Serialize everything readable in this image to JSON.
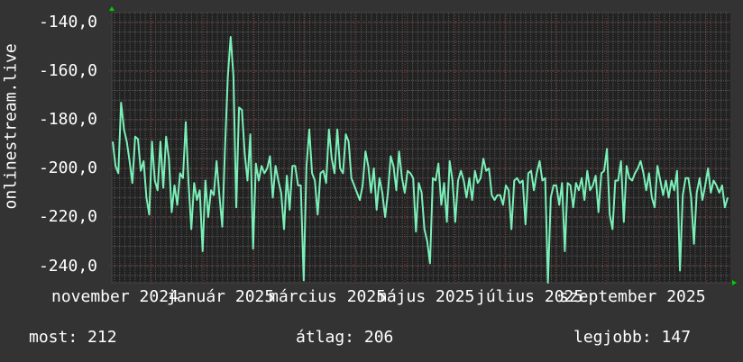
{
  "chart_data": {
    "type": "line",
    "title": "",
    "ylabel": "onlinestream.live",
    "xlabel": "",
    "ylim": [
      -247,
      -136
    ],
    "yticks": [
      -140,
      -160,
      -180,
      -200,
      -220,
      -240
    ],
    "ytick_labels": [
      "-140,0",
      "-160,0",
      "-180,0",
      "-200,0",
      "-220,0",
      "-240,0"
    ],
    "x_range": [
      "2024-11-01",
      "2025-10-15"
    ],
    "xtick_labels": [
      "november 2024",
      "január 2025",
      "március 2025",
      "május 2025",
      "július 2025",
      "szeptember 2025"
    ],
    "grid": true,
    "colors": {
      "background": "#333333",
      "plot_background": "#222222",
      "line": "#7af0b8",
      "major_grid": "#8a3a3a",
      "minor_grid": "#555555",
      "arrow": "#00cc00"
    },
    "values": [
      -189,
      -199,
      -202,
      -173,
      -184,
      -189,
      -197,
      -206,
      -187,
      -188,
      -201,
      -197,
      -212,
      -219,
      -189,
      -205,
      -209,
      -189,
      -208,
      -187,
      -196,
      -218,
      -207,
      -215,
      -202,
      -204,
      -181,
      -206,
      -225,
      -206,
      -213,
      -209,
      -234,
      -205,
      -220,
      -209,
      -211,
      -197,
      -211,
      -224,
      -191,
      -162,
      -146,
      -162,
      -216,
      -175,
      -176,
      -194,
      -205,
      -186,
      -233,
      -198,
      -205,
      -199,
      -202,
      -200,
      -195,
      -212,
      -199,
      -205,
      -210,
      -225,
      -203,
      -217,
      -199,
      -199,
      -207,
      -207,
      -246,
      -199,
      -184,
      -202,
      -205,
      -219,
      -202,
      -201,
      -206,
      -184,
      -196,
      -202,
      -184,
      -200,
      -202,
      -186,
      -189,
      -204,
      -207,
      -210,
      -213,
      -207,
      -193,
      -199,
      -210,
      -200,
      -217,
      -204,
      -210,
      -220,
      -210,
      -195,
      -199,
      -209,
      -193,
      -204,
      -210,
      -201,
      -202,
      -204,
      -226,
      -206,
      -210,
      -225,
      -230,
      -239,
      -204,
      -205,
      -198,
      -215,
      -206,
      -222,
      -197,
      -205,
      -222,
      -205,
      -201,
      -205,
      -212,
      -204,
      -213,
      -201,
      -206,
      -204,
      -196,
      -201,
      -200,
      -211,
      -213,
      -211,
      -211,
      -215,
      -207,
      -209,
      -225,
      -205,
      -204,
      -206,
      -205,
      -223,
      -202,
      -201,
      -209,
      -202,
      -197,
      -205,
      -204,
      -247,
      -212,
      -207,
      -207,
      -215,
      -206,
      -234,
      -206,
      -207,
      -216,
      -206,
      -209,
      -204,
      -213,
      -201,
      -209,
      -207,
      -203,
      -218,
      -202,
      -201,
      -192,
      -219,
      -225,
      -205,
      -205,
      -197,
      -222,
      -199,
      -204,
      -205,
      -202,
      -200,
      -197,
      -202,
      -209,
      -202,
      -212,
      -216,
      -199,
      -205,
      -211,
      -205,
      -212,
      -205,
      -209,
      -201,
      -242,
      -211,
      -204,
      -204,
      -212,
      -231,
      -210,
      -204,
      -213,
      -207,
      -200,
      -210,
      -205,
      -207,
      -210,
      -207,
      -216,
      -212
    ]
  },
  "legend": {
    "current_label": "most:",
    "current_value": "212",
    "average_label": "átlag:",
    "average_value": "206",
    "best_label": "legjobb:",
    "best_value": "147"
  }
}
